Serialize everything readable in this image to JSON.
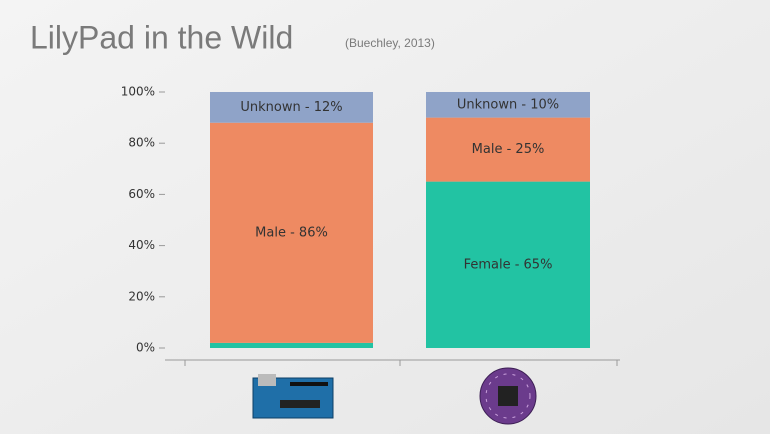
{
  "chart_data": {
    "type": "stacked_bar",
    "title": "LilyPad in the Wild",
    "subtitle": "(Buechley, 2013)",
    "categories": [
      null,
      null
    ],
    "series": [
      {
        "name": "Female",
        "color": "#22c3a3",
        "values": [
          2,
          65
        ],
        "value_labels": [
          null,
          "Female - 65%"
        ]
      },
      {
        "name": "Male",
        "color": "#ee8a62",
        "values": [
          86,
          25
        ],
        "value_labels": [
          "Male - 86%",
          "Male - 25%"
        ]
      },
      {
        "name": "Unknown",
        "color": "#8fa3c8",
        "values": [
          12,
          10
        ],
        "value_labels": [
          "Unknown - 12%",
          "Unknown - 10%"
        ]
      }
    ],
    "ylim": [
      0,
      100
    ],
    "yticks": [
      {
        "value": 0,
        "label": "0%"
      },
      {
        "value": 20,
        "label": "20%"
      },
      {
        "value": 40,
        "label": "40%"
      },
      {
        "value": 60,
        "label": "60%"
      },
      {
        "value": 80,
        "label": "80%"
      },
      {
        "value": 100,
        "label": "100%"
      }
    ]
  }
}
